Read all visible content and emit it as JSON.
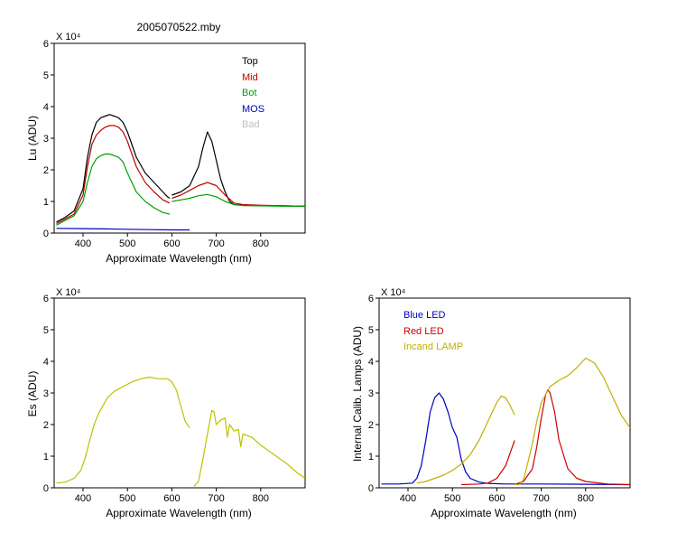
{
  "title": "2005070522.mby",
  "colors": {
    "top": "#000000",
    "mid": "#c00000",
    "bot": "#00a000",
    "mos": "#0000c0",
    "bad": "#c0c0c0",
    "es": "#c0c000",
    "blue_led": "#0000c0",
    "red_led": "#d00000",
    "lamp": "#c0b000"
  },
  "chart_data": [
    {
      "type": "line",
      "title": "2005070522.mby",
      "xlabel": "Approximate Wavelength (nm)",
      "ylabel": "Lu (ADU)",
      "y_multiplier": "X 10⁴",
      "xlim": [
        335,
        900
      ],
      "ylim": [
        0,
        6
      ],
      "xticks": [
        400,
        500,
        600,
        700,
        800
      ],
      "yticks": [
        0,
        1,
        2,
        3,
        4,
        5,
        6
      ],
      "grid": false,
      "legend": "top-right",
      "legend_entries": [
        "Top",
        "Mid",
        "Bot",
        "MOS",
        "Bad"
      ],
      "series": [
        {
          "name": "Top",
          "color": "#000000",
          "segments": [
            {
              "x": [
                340,
                360,
                380,
                400,
                410,
                420,
                430,
                440,
                450,
                460,
                470,
                480,
                490,
                500,
                520,
                540,
                560,
                580,
                590,
                595
              ],
              "y": [
                0.35,
                0.5,
                0.7,
                1.4,
                2.4,
                3.1,
                3.5,
                3.65,
                3.7,
                3.75,
                3.7,
                3.65,
                3.5,
                3.2,
                2.4,
                1.9,
                1.6,
                1.3,
                1.15,
                1.1
              ]
            },
            {
              "x": [
                600,
                620,
                640,
                660,
                670,
                680,
                690,
                700,
                710,
                720,
                730,
                740,
                760,
                800,
                850,
                900
              ],
              "y": [
                1.2,
                1.3,
                1.5,
                2.1,
                2.7,
                3.2,
                2.9,
                2.3,
                1.7,
                1.3,
                1.0,
                0.9,
                0.88,
                0.87,
                0.86,
                0.85
              ]
            }
          ]
        },
        {
          "name": "Mid",
          "color": "#c00000",
          "segments": [
            {
              "x": [
                340,
                360,
                380,
                400,
                410,
                420,
                430,
                440,
                450,
                460,
                470,
                480,
                490,
                500,
                520,
                540,
                560,
                580,
                595
              ],
              "y": [
                0.3,
                0.45,
                0.6,
                1.2,
                2.1,
                2.8,
                3.1,
                3.25,
                3.35,
                3.4,
                3.4,
                3.35,
                3.2,
                2.9,
                2.1,
                1.6,
                1.3,
                1.05,
                0.95
              ]
            },
            {
              "x": [
                600,
                620,
                640,
                660,
                680,
                700,
                720,
                740,
                760,
                800,
                850,
                900
              ],
              "y": [
                1.1,
                1.2,
                1.35,
                1.5,
                1.6,
                1.5,
                1.2,
                0.95,
                0.9,
                0.88,
                0.86,
                0.85
              ]
            }
          ]
        },
        {
          "name": "Bot",
          "color": "#00a000",
          "segments": [
            {
              "x": [
                340,
                360,
                380,
                400,
                410,
                420,
                430,
                440,
                450,
                460,
                470,
                480,
                490,
                500,
                520,
                540,
                560,
                580,
                595
              ],
              "y": [
                0.25,
                0.4,
                0.55,
                1.0,
                1.6,
                2.1,
                2.35,
                2.45,
                2.5,
                2.5,
                2.45,
                2.4,
                2.25,
                1.9,
                1.3,
                1.0,
                0.8,
                0.65,
                0.6
              ]
            },
            {
              "x": [
                600,
                620,
                640,
                660,
                680,
                700,
                720,
                740,
                760,
                800,
                850,
                900
              ],
              "y": [
                1.0,
                1.05,
                1.1,
                1.18,
                1.22,
                1.15,
                1.0,
                0.9,
                0.87,
                0.86,
                0.85,
                0.85
              ]
            }
          ]
        },
        {
          "name": "MOS",
          "color": "#0000c0",
          "segments": [
            {
              "x": [
                340,
                400,
                450,
                500,
                550,
                600,
                640
              ],
              "y": [
                0.15,
                0.14,
                0.13,
                0.12,
                0.11,
                0.1,
                0.1
              ]
            }
          ]
        },
        {
          "name": "Bad",
          "color": "#c0c0c0",
          "segments": []
        }
      ]
    },
    {
      "type": "line",
      "xlabel": "Approximate Wavelength (nm)",
      "ylabel": "Es (ADU)",
      "y_multiplier": "X 10⁴",
      "xlim": [
        335,
        900
      ],
      "ylim": [
        0,
        6
      ],
      "xticks": [
        400,
        500,
        600,
        700,
        800
      ],
      "yticks": [
        0,
        1,
        2,
        3,
        4,
        5,
        6
      ],
      "grid": false,
      "series": [
        {
          "color": "#c0c000",
          "segments": [
            {
              "x": [
                340,
                360,
                380,
                395,
                405,
                415,
                425,
                435,
                445,
                455,
                470,
                490,
                510,
                530,
                550,
                570,
                590,
                600,
                610,
                620,
                630,
                640
              ],
              "y": [
                0.15,
                0.18,
                0.3,
                0.55,
                0.95,
                1.5,
                2.0,
                2.35,
                2.6,
                2.85,
                3.05,
                3.2,
                3.35,
                3.45,
                3.5,
                3.45,
                3.45,
                3.35,
                3.1,
                2.6,
                2.1,
                1.9
              ]
            },
            {
              "x": [
                650,
                660,
                670,
                680,
                690,
                695,
                700,
                710,
                720,
                725,
                730,
                740,
                750,
                755,
                760,
                780,
                800,
                820,
                840,
                860,
                880,
                900
              ],
              "y": [
                0.05,
                0.2,
                0.9,
                1.7,
                2.45,
                2.4,
                2.0,
                2.15,
                2.2,
                1.6,
                2.0,
                1.8,
                1.85,
                1.3,
                1.7,
                1.6,
                1.35,
                1.15,
                0.95,
                0.75,
                0.5,
                0.3
              ]
            }
          ]
        }
      ]
    },
    {
      "type": "line",
      "xlabel": "Approximate Wavelength (nm)",
      "ylabel": "Internal Calib. Lamps (ADU)",
      "y_multiplier": "X 10⁴",
      "xlim": [
        335,
        900
      ],
      "ylim": [
        0,
        6
      ],
      "xticks": [
        400,
        500,
        600,
        700,
        800
      ],
      "yticks": [
        0,
        1,
        2,
        3,
        4,
        5,
        6
      ],
      "grid": false,
      "legend": "top-left",
      "legend_entries": [
        "Blue LED",
        "Red LED",
        "Incand LAMP"
      ],
      "series": [
        {
          "name": "Blue LED",
          "color": "#0000c0",
          "segments": [
            {
              "x": [
                340,
                380,
                410,
                420,
                430,
                440,
                450,
                460,
                470,
                480,
                490,
                500,
                510,
                520,
                530,
                540,
                560,
                580,
                620,
                700,
                800,
                900
              ],
              "y": [
                0.12,
                0.12,
                0.15,
                0.3,
                0.7,
                1.5,
                2.4,
                2.85,
                3.0,
                2.8,
                2.4,
                1.9,
                1.6,
                0.9,
                0.5,
                0.3,
                0.18,
                0.14,
                0.12,
                0.12,
                0.11,
                0.1
              ]
            }
          ]
        },
        {
          "name": "Red LED",
          "color": "#d00000",
          "segments": [
            {
              "x": [
                520,
                560,
                580,
                600,
                620,
                640
              ],
              "y": [
                0.1,
                0.12,
                0.15,
                0.3,
                0.7,
                1.5
              ]
            },
            {
              "x": [
                640,
                660,
                680,
                690,
                700,
                710,
                715,
                720,
                730,
                740,
                760,
                780,
                800,
                850,
                900
              ],
              "y": [
                0.1,
                0.2,
                0.6,
                1.3,
                2.2,
                2.95,
                3.1,
                3.0,
                2.4,
                1.5,
                0.6,
                0.3,
                0.2,
                0.12,
                0.1
              ]
            }
          ]
        },
        {
          "name": "Incand LAMP",
          "color": "#c0b000",
          "segments": [
            {
              "x": [
                420,
                440,
                460,
                480,
                500,
                520,
                540,
                560,
                580,
                600,
                610,
                620,
                630,
                640
              ],
              "y": [
                0.15,
                0.2,
                0.3,
                0.4,
                0.55,
                0.75,
                1.05,
                1.5,
                2.1,
                2.7,
                2.9,
                2.85,
                2.6,
                2.3
              ]
            },
            {
              "x": [
                640,
                650,
                660,
                670,
                680,
                690,
                700,
                720,
                740,
                760,
                780,
                800,
                820,
                840,
                860,
                880,
                900
              ],
              "y": [
                0.1,
                0.1,
                0.25,
                0.8,
                1.4,
                2.1,
                2.7,
                3.2,
                3.4,
                3.55,
                3.8,
                4.1,
                3.95,
                3.5,
                2.9,
                2.3,
                1.9
              ]
            }
          ]
        }
      ]
    }
  ]
}
